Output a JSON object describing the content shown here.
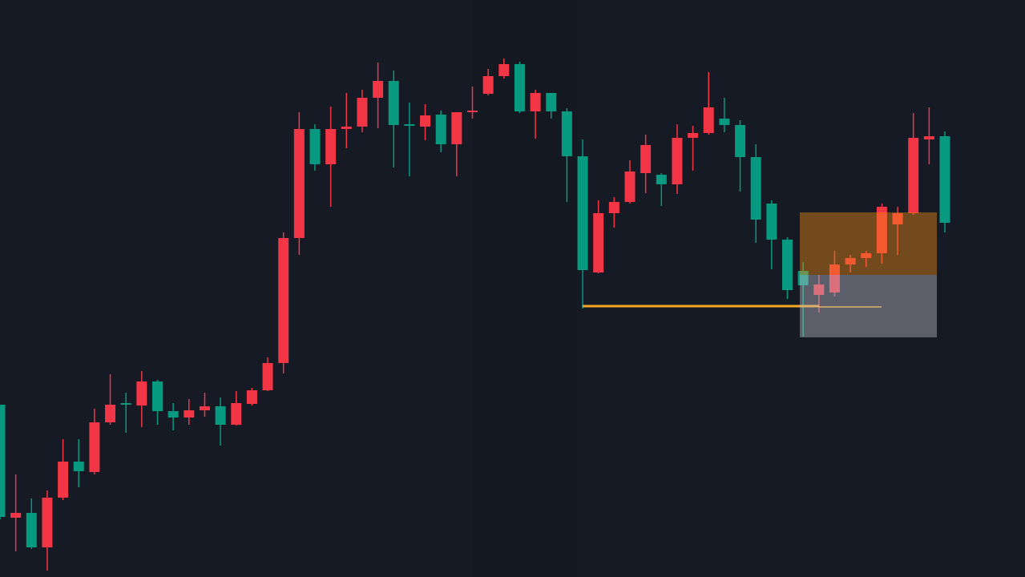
{
  "chart_data": {
    "type": "candlestick",
    "up_color": "#f23645",
    "down_color": "#089981",
    "ylim": [
      0,
      720
    ],
    "open": [
      215,
      74,
      80,
      37,
      99,
      144,
      131,
      193,
      217,
      214,
      244,
      207,
      199,
      208,
      213,
      190,
      216,
      233,
      267,
      423,
      559,
      515,
      559,
      562,
      598,
      619,
      565,
      562,
      577,
      540,
      580,
      603,
      625,
      640,
      581,
      604,
      581,
      525,
      380,
      454,
      468,
      504,
      502,
      490,
      548,
      554,
      572,
      564,
      524,
      466,
      421,
      382,
      352,
      355,
      390,
      398,
      404,
      440,
      454,
      546,
      550
    ],
    "high": [
      215,
      128,
      98,
      108,
      172,
      172,
      210,
      253,
      230,
      257,
      246,
      217,
      222,
      230,
      224,
      232,
      236,
      274,
      430,
      580,
      565,
      587,
      604,
      608,
      642,
      632,
      592,
      590,
      582,
      580,
      612,
      634,
      647,
      643,
      608,
      604,
      585,
      546,
      470,
      474,
      520,
      552,
      504,
      565,
      563,
      630,
      598,
      570,
      540,
      470,
      424,
      393,
      377,
      407,
      402,
      407,
      466,
      462,
      579,
      586,
      556
    ],
    "low": [
      72,
      32,
      35,
      8,
      96,
      112,
      128,
      190,
      180,
      187,
      190,
      183,
      190,
      200,
      164,
      189,
      214,
      232,
      254,
      402,
      507,
      462,
      535,
      555,
      560,
      511,
      500,
      545,
      530,
      500,
      572,
      601,
      622,
      579,
      547,
      572,
      468,
      335,
      379,
      436,
      466,
      479,
      463,
      478,
      507,
      552,
      555,
      481,
      417,
      384,
      347,
      300,
      330,
      350,
      380,
      387,
      391,
      402,
      452,
      515,
      430
    ],
    "close": [
      75,
      80,
      37,
      99,
      144,
      132,
      193,
      215,
      215,
      244,
      207,
      199,
      208,
      213,
      190,
      217,
      233,
      267,
      423,
      559,
      515,
      559,
      562,
      598,
      619,
      564,
      563,
      576,
      540,
      580,
      582,
      625,
      640,
      581,
      604,
      581,
      525,
      383,
      454,
      468,
      506,
      539,
      490,
      548,
      554,
      586,
      564,
      524,
      446,
      421,
      358,
      364,
      365,
      390,
      398,
      404,
      462,
      454,
      548,
      550,
      442
    ]
  }
}
